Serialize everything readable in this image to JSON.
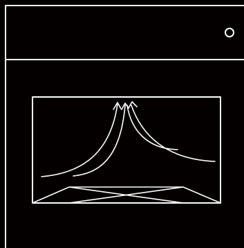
{
  "panel": {
    "indicator_icon": "circle-outline-icon"
  },
  "illustration": {
    "icon": "oven-hot-air-icon",
    "stroke_color": "#ffffff",
    "background_color": "#050000"
  }
}
